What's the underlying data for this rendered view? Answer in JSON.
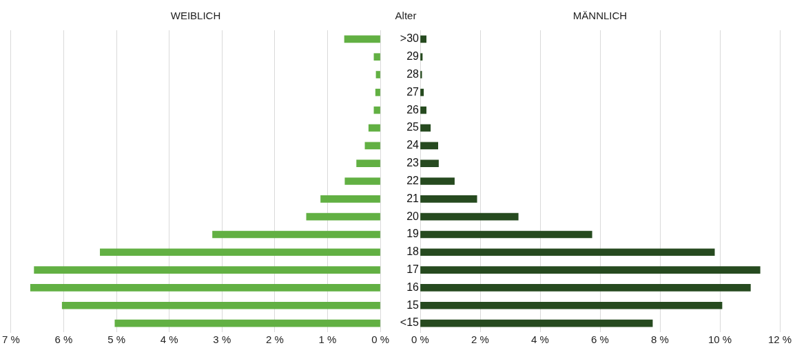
{
  "chart_data": [
    {
      "type": "bar",
      "orientation": "horizontal",
      "title": "WEIBLICH",
      "categories": [
        null,
        null,
        null,
        null,
        null,
        null,
        null,
        null,
        null,
        null,
        null,
        null,
        null,
        null,
        null,
        null,
        null
      ],
      "series": [
        {
          "color": "#62b043",
          "values": [
            0.68,
            0.12,
            0.08,
            0.09,
            0.12,
            0.22,
            0.29,
            0.45,
            0.67,
            1.13,
            1.4,
            3.18,
            5.31,
            6.56,
            6.63,
            6.03,
            5.03
          ]
        }
      ],
      "xlim": [
        7,
        0
      ],
      "xticks": [
        {
          "value": 7,
          "label": "7 %"
        },
        {
          "value": 6,
          "label": "6 %"
        },
        {
          "value": 5,
          "label": "5 %"
        },
        {
          "value": 4,
          "label": "4 %"
        },
        {
          "value": 3,
          "label": "3 %"
        },
        {
          "value": 2,
          "label": "2 %"
        },
        {
          "value": 1,
          "label": "1 %"
        },
        {
          "value": 0,
          "label": "0 %"
        }
      ],
      "grid": "x",
      "legend": false,
      "tick_labels": "x"
    },
    {
      "type": "bar",
      "orientation": "horizontal",
      "title": "MÄNNLICH",
      "ylabel": "Alter",
      "categories": [
        ">30",
        "29",
        "28",
        "27",
        "26",
        "25",
        "24",
        "23",
        "22",
        "21",
        "20",
        "19",
        "18",
        "17",
        "16",
        "15",
        "<15"
      ],
      "series": [
        {
          "color": "#264a1f",
          "values": [
            0.2,
            0.07,
            0.05,
            0.11,
            0.2,
            0.34,
            0.59,
            0.61,
            1.14,
            1.89,
            3.27,
            5.73,
            9.82,
            11.34,
            11.02,
            10.07,
            7.75
          ]
        }
      ],
      "xlim": [
        0,
        12
      ],
      "xticks": [
        {
          "value": 0,
          "label": "0 %"
        },
        {
          "value": 2,
          "label": "2 %"
        },
        {
          "value": 4,
          "label": "4 %"
        },
        {
          "value": 6,
          "label": "6 %"
        },
        {
          "value": 8,
          "label": "8 %"
        },
        {
          "value": 10,
          "label": "10 %"
        },
        {
          "value": 12,
          "label": "12 %"
        }
      ],
      "grid": "x",
      "legend": false
    }
  ]
}
